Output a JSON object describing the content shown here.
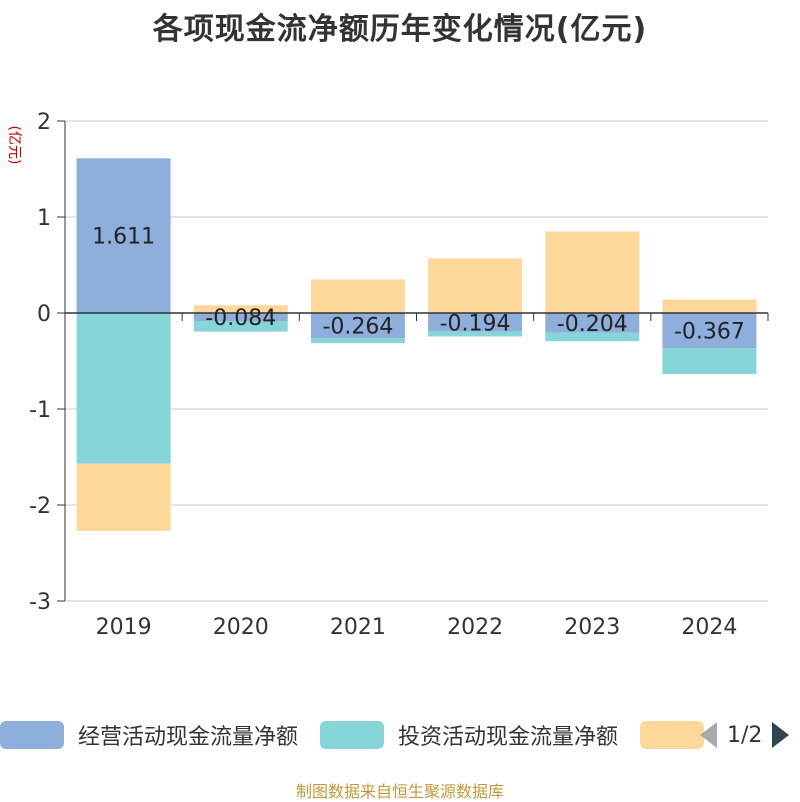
{
  "title": "各项现金流净额历年变化情况(亿元)",
  "chart_data": {
    "type": "bar",
    "stacked": true,
    "ylabel": "(亿元)",
    "ylim": [
      -3,
      2
    ],
    "yticks": [
      2,
      1,
      0,
      -1,
      -2,
      -3
    ],
    "grid": true,
    "categories": [
      "2019",
      "2020",
      "2021",
      "2022",
      "2023",
      "2024"
    ],
    "series": [
      {
        "name": "经营活动现金流量净额",
        "color": "#8eaedb",
        "values": [
          1.611,
          -0.084,
          -0.264,
          -0.194,
          -0.204,
          -0.367
        ],
        "labels": [
          "1.611",
          "-0.084",
          "-0.264",
          "-0.194",
          "-0.204",
          "-0.367"
        ]
      },
      {
        "name": "投资活动现金流量净额",
        "color": "#86d5d8",
        "values": [
          -1.57,
          -0.11,
          -0.05,
          -0.05,
          -0.09,
          -0.27
        ]
      },
      {
        "name": "",
        "color": "#fdd89a",
        "values": [
          -0.7,
          0.08,
          0.35,
          0.57,
          0.85,
          0.14
        ]
      }
    ],
    "legend_position": "bottom"
  },
  "legend": {
    "page_text": "1/2"
  },
  "footer": "制图数据来自恒生聚源数据库"
}
